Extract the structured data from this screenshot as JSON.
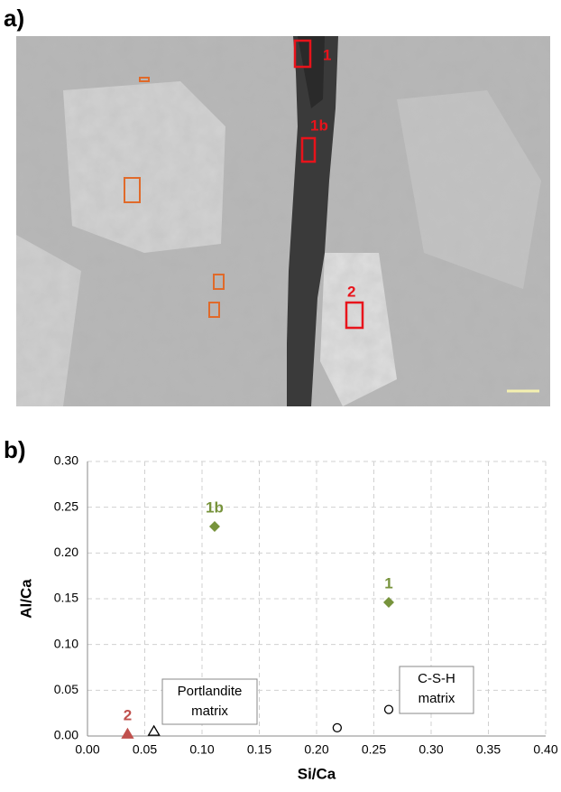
{
  "panel_a": {
    "label": "a)",
    "markers": [
      "1",
      "1b",
      "2"
    ]
  },
  "panel_b": {
    "label": "b)"
  },
  "chart_data": {
    "type": "scatter",
    "x_label": "Si/Ca",
    "y_label": "Al/Ca",
    "xlim": [
      0,
      0.4
    ],
    "ylim": [
      0,
      0.3
    ],
    "xticks": [
      {
        "value": 0,
        "label": "0.00"
      },
      {
        "value": 0.05,
        "label": "0.05"
      },
      {
        "value": 0.1,
        "label": "0.10"
      },
      {
        "value": 0.15,
        "label": "0.15"
      },
      {
        "value": 0.2,
        "label": "0.20"
      },
      {
        "value": 0.25,
        "label": "0.25"
      },
      {
        "value": 0.3,
        "label": "0.30"
      },
      {
        "value": 0.35,
        "label": "0.35"
      },
      {
        "value": 0.4,
        "label": "0.40"
      }
    ],
    "yticks": [
      {
        "value": 0,
        "label": "0.00"
      },
      {
        "value": 0.05,
        "label": "0.05"
      },
      {
        "value": 0.1,
        "label": "0.10"
      },
      {
        "value": 0.15,
        "label": "0.15"
      },
      {
        "value": 0.2,
        "label": "0.20"
      },
      {
        "value": 0.25,
        "label": "0.25"
      },
      {
        "value": 0.3,
        "label": "0.30"
      }
    ],
    "grid": true,
    "series": [
      {
        "marker": "triangle",
        "color": "#c0504d",
        "x": [
          0.035
        ],
        "values": [
          0.002
        ],
        "point_labels": [
          "2"
        ]
      },
      {
        "marker": "diamond",
        "color": "#77933c",
        "x": [
          0.111,
          0.263
        ],
        "values": [
          0.229,
          0.146
        ],
        "point_labels": [
          "1b",
          "1"
        ]
      },
      {
        "marker": "open-triangle",
        "color": "#000000",
        "x": [
          0.058
        ],
        "values": [
          0.005
        ]
      },
      {
        "marker": "open-circle",
        "color": "#000000",
        "x": [
          0.218,
          0.263
        ],
        "values": [
          0.009,
          0.029
        ]
      }
    ],
    "annotations": [
      {
        "lines": [
          "Portlandite",
          "matrix"
        ]
      },
      {
        "lines": [
          "C-S-H",
          "matrix"
        ]
      }
    ]
  }
}
